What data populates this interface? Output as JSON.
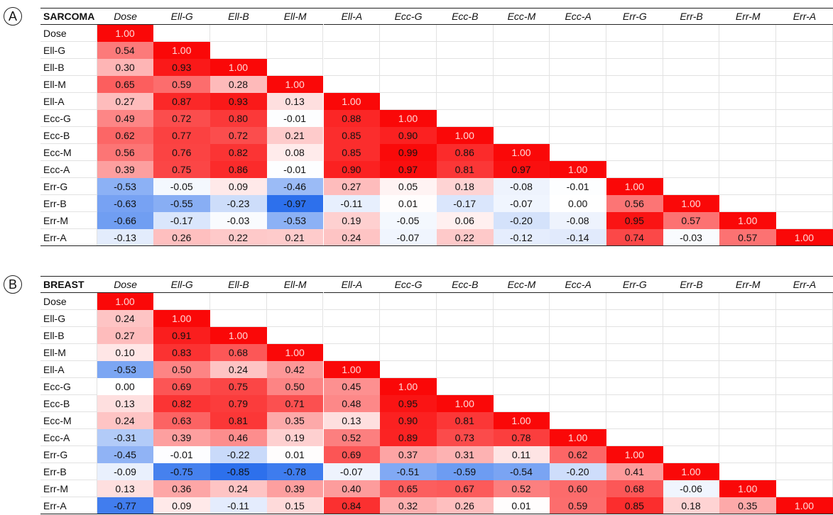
{
  "panels": [
    {
      "label": "A",
      "title": "SARCOMA",
      "columns": [
        "Dose",
        "Ell-G",
        "Ell-B",
        "Ell-M",
        "Ell-A",
        "Ecc-G",
        "Ecc-B",
        "Ecc-M",
        "Ecc-A",
        "Err-G",
        "Err-B",
        "Err-M",
        "Err-A"
      ],
      "rows": [
        {
          "label": "Dose",
          "values": [
            "1.00"
          ]
        },
        {
          "label": "Ell-G",
          "values": [
            "0.54",
            "1.00"
          ]
        },
        {
          "label": "Ell-B",
          "values": [
            "0.30",
            "0.93",
            "1.00"
          ]
        },
        {
          "label": "Ell-M",
          "values": [
            "0.65",
            "0.59",
            "0.28",
            "1.00"
          ]
        },
        {
          "label": "Ell-A",
          "values": [
            "0.27",
            "0.87",
            "0.93",
            "0.13",
            "1.00"
          ]
        },
        {
          "label": "Ecc-G",
          "values": [
            "0.49",
            "0.72",
            "0.80",
            "-0.01",
            "0.88",
            "1.00"
          ]
        },
        {
          "label": "Ecc-B",
          "values": [
            "0.62",
            "0.77",
            "0.72",
            "0.21",
            "0.85",
            "0.90",
            "1.00"
          ]
        },
        {
          "label": "Ecc-M",
          "values": [
            "0.56",
            "0.76",
            "0.82",
            "0.08",
            "0.85",
            "0.99",
            "0.86",
            "1.00"
          ]
        },
        {
          "label": "Ecc-A",
          "values": [
            "0.39",
            "0.75",
            "0.86",
            "-0.01",
            "0.90",
            "0.97",
            "0.81",
            "0.97",
            "1.00"
          ]
        },
        {
          "label": "Err-G",
          "values": [
            "-0.53",
            "-0.05",
            "0.09",
            "-0.46",
            "0.27",
            "0.05",
            "0.18",
            "-0.08",
            "-0.01",
            "1.00"
          ]
        },
        {
          "label": "Err-B",
          "values": [
            "-0.63",
            "-0.55",
            "-0.23",
            "-0.97",
            "-0.11",
            "0.01",
            "-0.17",
            "-0.07",
            "0.00",
            "0.56",
            "1.00"
          ]
        },
        {
          "label": "Err-M",
          "values": [
            "-0.66",
            "-0.17",
            "-0.03",
            "-0.53",
            "0.19",
            "-0.05",
            "0.06",
            "-0.20",
            "-0.08",
            "0.95",
            "0.57",
            "1.00"
          ]
        },
        {
          "label": "Err-A",
          "values": [
            "-0.13",
            "0.26",
            "0.22",
            "0.21",
            "0.24",
            "-0.07",
            "0.22",
            "-0.12",
            "-0.14",
            "0.74",
            "-0.03",
            "0.57",
            "1.00"
          ]
        }
      ]
    },
    {
      "label": "B",
      "title": "BREAST",
      "columns": [
        "Dose",
        "Ell-G",
        "Ell-B",
        "Ell-M",
        "Ell-A",
        "Ecc-G",
        "Ecc-B",
        "Ecc-M",
        "Ecc-A",
        "Err-G",
        "Err-B",
        "Err-M",
        "Err-A"
      ],
      "rows": [
        {
          "label": "Dose",
          "values": [
            "1.00"
          ]
        },
        {
          "label": "Ell-G",
          "values": [
            "0.24",
            "1.00"
          ]
        },
        {
          "label": "Ell-B",
          "values": [
            "0.27",
            "0.91",
            "1.00"
          ]
        },
        {
          "label": "Ell-M",
          "values": [
            "0.10",
            "0.83",
            "0.68",
            "1.00"
          ]
        },
        {
          "label": "Ell-A",
          "values": [
            "-0.53",
            "0.50",
            "0.24",
            "0.42",
            "1.00"
          ]
        },
        {
          "label": "Ecc-G",
          "values": [
            "0.00",
            "0.69",
            "0.75",
            "0.50",
            "0.45",
            "1.00"
          ]
        },
        {
          "label": "Ecc-B",
          "values": [
            "0.13",
            "0.82",
            "0.79",
            "0.71",
            "0.48",
            "0.95",
            "1.00"
          ]
        },
        {
          "label": "Ecc-M",
          "values": [
            "0.24",
            "0.63",
            "0.81",
            "0.35",
            "0.13",
            "0.90",
            "0.81",
            "1.00"
          ]
        },
        {
          "label": "Ecc-A",
          "values": [
            "-0.31",
            "0.39",
            "0.46",
            "0.19",
            "0.52",
            "0.89",
            "0.73",
            "0.78",
            "1.00"
          ]
        },
        {
          "label": "Err-G",
          "values": [
            "-0.45",
            "-0.01",
            "-0.22",
            "0.01",
            "0.69",
            "0.37",
            "0.31",
            "0.11",
            "0.62",
            "1.00"
          ]
        },
        {
          "label": "Err-B",
          "values": [
            "-0.09",
            "-0.75",
            "-0.85",
            "-0.78",
            "-0.07",
            "-0.51",
            "-0.59",
            "-0.54",
            "-0.20",
            "0.41",
            "1.00"
          ]
        },
        {
          "label": "Err-M",
          "values": [
            "0.13",
            "0.36",
            "0.24",
            "0.39",
            "0.40",
            "0.65",
            "0.67",
            "0.52",
            "0.60",
            "0.68",
            "-0.06",
            "1.00"
          ]
        },
        {
          "label": "Err-A",
          "values": [
            "-0.77",
            "0.09",
            "-0.11",
            "0.15",
            "0.84",
            "0.32",
            "0.26",
            "0.01",
            "0.59",
            "0.85",
            "0.18",
            "0.35",
            "1.00"
          ]
        }
      ]
    }
  ]
}
